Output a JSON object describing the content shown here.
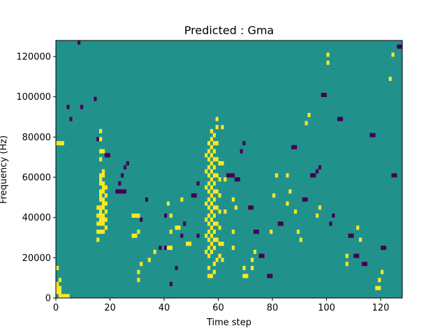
{
  "chart_data": {
    "type": "heatmap",
    "title": "Predicted : Gma",
    "xlabel": "Time step",
    "ylabel": "Frequency (Hz)",
    "xlim": [
      0,
      128
    ],
    "ylim": [
      0,
      128000
    ],
    "x_ticks": [
      0,
      20,
      40,
      60,
      80,
      100,
      120
    ],
    "y_ticks": [
      0,
      20000,
      40000,
      60000,
      80000,
      100000,
      120000
    ],
    "x_tick_labels": [
      "0",
      "20",
      "40",
      "60",
      "80",
      "100",
      "120"
    ],
    "y_tick_labels": [
      "0",
      "20000",
      "40000",
      "60000",
      "80000",
      "100000",
      "120000"
    ],
    "n_time_steps": 128,
    "n_freq_bins": 64,
    "bin_hz": 2000,
    "values_legend": {
      "background": 0,
      "high": 1,
      "low": -1
    },
    "colors": {
      "background": "#21918c",
      "high": "#fde725",
      "low": "#440154"
    },
    "high_cells": [
      [
        1,
        0
      ],
      [
        2,
        0
      ],
      [
        3,
        0
      ],
      [
        4,
        0
      ],
      [
        0,
        1
      ],
      [
        1,
        1
      ],
      [
        0,
        2
      ],
      [
        1,
        2
      ],
      [
        0,
        3
      ],
      [
        1,
        4
      ],
      [
        0,
        7
      ],
      [
        0,
        38
      ],
      [
        1,
        38
      ],
      [
        2,
        38
      ],
      [
        16,
        16
      ],
      [
        16,
        18
      ],
      [
        16,
        20
      ],
      [
        16,
        22
      ],
      [
        16,
        24
      ],
      [
        16,
        26
      ],
      [
        16,
        28
      ],
      [
        16,
        30
      ],
      [
        17,
        16
      ],
      [
        17,
        18
      ],
      [
        17,
        20
      ],
      [
        17,
        22
      ],
      [
        17,
        24
      ],
      [
        17,
        26
      ],
      [
        17,
        28
      ],
      [
        17,
        30
      ],
      [
        16,
        19
      ],
      [
        17,
        19
      ],
      [
        16,
        21
      ],
      [
        17,
        23
      ],
      [
        16,
        25
      ],
      [
        17,
        27
      ],
      [
        16,
        29
      ],
      [
        17,
        31
      ],
      [
        15,
        14
      ],
      [
        15,
        16
      ],
      [
        15,
        18
      ],
      [
        15,
        20
      ],
      [
        15,
        22
      ],
      [
        18,
        17
      ],
      [
        18,
        19
      ],
      [
        18,
        21
      ],
      [
        18,
        23
      ],
      [
        18,
        25
      ],
      [
        18,
        27
      ],
      [
        16,
        34
      ],
      [
        16,
        36
      ],
      [
        17,
        36
      ],
      [
        16,
        39
      ],
      [
        16,
        41
      ],
      [
        28,
        15
      ],
      [
        29,
        15
      ],
      [
        30,
        16
      ],
      [
        28,
        20
      ],
      [
        29,
        20
      ],
      [
        30,
        20
      ],
      [
        30,
        4
      ],
      [
        30,
        6
      ],
      [
        31,
        8
      ],
      [
        34,
        9
      ],
      [
        36,
        11
      ],
      [
        41,
        12
      ],
      [
        42,
        12
      ],
      [
        42,
        16
      ],
      [
        42,
        20
      ],
      [
        41,
        23
      ],
      [
        44,
        17
      ],
      [
        45,
        17
      ],
      [
        46,
        24
      ],
      [
        48,
        13
      ],
      [
        49,
        13
      ],
      [
        56,
        10
      ],
      [
        56,
        12
      ],
      [
        56,
        14
      ],
      [
        56,
        16
      ],
      [
        56,
        18
      ],
      [
        56,
        20
      ],
      [
        56,
        22
      ],
      [
        56,
        24
      ],
      [
        56,
        26
      ],
      [
        56,
        28
      ],
      [
        56,
        30
      ],
      [
        56,
        32
      ],
      [
        56,
        34
      ],
      [
        56,
        36
      ],
      [
        56,
        38
      ],
      [
        57,
        11
      ],
      [
        57,
        13
      ],
      [
        57,
        15
      ],
      [
        57,
        17
      ],
      [
        57,
        19
      ],
      [
        57,
        21
      ],
      [
        57,
        23
      ],
      [
        57,
        25
      ],
      [
        57,
        27
      ],
      [
        57,
        29
      ],
      [
        57,
        31
      ],
      [
        57,
        33
      ],
      [
        57,
        35
      ],
      [
        57,
        37
      ],
      [
        57,
        39
      ],
      [
        57,
        41
      ],
      [
        58,
        12
      ],
      [
        58,
        14
      ],
      [
        58,
        16
      ],
      [
        58,
        18
      ],
      [
        58,
        20
      ],
      [
        58,
        22
      ],
      [
        58,
        24
      ],
      [
        58,
        26
      ],
      [
        58,
        28
      ],
      [
        58,
        30
      ],
      [
        58,
        32
      ],
      [
        58,
        34
      ],
      [
        58,
        36
      ],
      [
        58,
        38
      ],
      [
        58,
        40
      ],
      [
        59,
        14
      ],
      [
        59,
        18
      ],
      [
        59,
        22
      ],
      [
        59,
        26
      ],
      [
        59,
        30
      ],
      [
        59,
        34
      ],
      [
        59,
        38
      ],
      [
        59,
        42
      ],
      [
        59,
        44
      ],
      [
        55,
        11
      ],
      [
        55,
        15
      ],
      [
        55,
        19
      ],
      [
        55,
        23
      ],
      [
        55,
        27
      ],
      [
        55,
        31
      ],
      [
        55,
        35
      ],
      [
        60,
        13
      ],
      [
        60,
        17
      ],
      [
        60,
        21
      ],
      [
        60,
        25
      ],
      [
        60,
        29
      ],
      [
        60,
        33
      ],
      [
        56,
        5
      ],
      [
        57,
        5
      ],
      [
        56,
        7
      ],
      [
        58,
        6
      ],
      [
        58,
        8
      ],
      [
        59,
        9
      ],
      [
        60,
        10
      ],
      [
        61,
        9
      ],
      [
        61,
        13
      ],
      [
        62,
        21
      ],
      [
        62,
        29
      ],
      [
        61,
        33
      ],
      [
        61,
        42
      ],
      [
        65,
        12
      ],
      [
        65,
        16
      ],
      [
        65,
        24
      ],
      [
        66,
        22
      ],
      [
        69,
        5
      ],
      [
        70,
        5
      ],
      [
        69,
        7
      ],
      [
        72,
        7
      ],
      [
        72,
        9
      ],
      [
        73,
        11
      ],
      [
        79,
        16
      ],
      [
        80,
        25
      ],
      [
        81,
        30
      ],
      [
        85,
        23
      ],
      [
        86,
        26
      ],
      [
        85,
        30
      ],
      [
        88,
        21
      ],
      [
        89,
        16
      ],
      [
        90,
        14
      ],
      [
        92,
        43
      ],
      [
        93,
        45
      ],
      [
        96,
        20
      ],
      [
        97,
        22
      ],
      [
        100,
        60
      ],
      [
        100,
        58
      ],
      [
        107,
        8
      ],
      [
        107,
        10
      ],
      [
        111,
        17
      ],
      [
        112,
        14
      ],
      [
        118,
        2
      ],
      [
        119,
        2
      ],
      [
        119,
        4
      ],
      [
        120,
        6
      ],
      [
        124,
        60
      ],
      [
        123,
        54
      ]
    ],
    "low_cells": [
      [
        8,
        63
      ],
      [
        4,
        47
      ],
      [
        5,
        44
      ],
      [
        9,
        47
      ],
      [
        14,
        49
      ],
      [
        15,
        39
      ],
      [
        22,
        26
      ],
      [
        23,
        26
      ],
      [
        24,
        26
      ],
      [
        25,
        26
      ],
      [
        18,
        35
      ],
      [
        19,
        35
      ],
      [
        23,
        28
      ],
      [
        24,
        30
      ],
      [
        25,
        32
      ],
      [
        26,
        33
      ],
      [
        31,
        19
      ],
      [
        33,
        24
      ],
      [
        38,
        12
      ],
      [
        40,
        12
      ],
      [
        40,
        20
      ],
      [
        42,
        3
      ],
      [
        44,
        7
      ],
      [
        46,
        15
      ],
      [
        47,
        18
      ],
      [
        50,
        25
      ],
      [
        51,
        25
      ],
      [
        52,
        15
      ],
      [
        52,
        28
      ],
      [
        63,
        30
      ],
      [
        64,
        30
      ],
      [
        65,
        30
      ],
      [
        66,
        29
      ],
      [
        67,
        29
      ],
      [
        68,
        36
      ],
      [
        69,
        38
      ],
      [
        71,
        22
      ],
      [
        72,
        22
      ],
      [
        73,
        16
      ],
      [
        74,
        16
      ],
      [
        75,
        10
      ],
      [
        76,
        10
      ],
      [
        78,
        5
      ],
      [
        79,
        5
      ],
      [
        82,
        18
      ],
      [
        83,
        18
      ],
      [
        87,
        37
      ],
      [
        88,
        37
      ],
      [
        91,
        24
      ],
      [
        92,
        24
      ],
      [
        94,
        30
      ],
      [
        95,
        30
      ],
      [
        96,
        31
      ],
      [
        97,
        32
      ],
      [
        98,
        50
      ],
      [
        99,
        50
      ],
      [
        101,
        18
      ],
      [
        102,
        20
      ],
      [
        104,
        44
      ],
      [
        105,
        44
      ],
      [
        108,
        15
      ],
      [
        109,
        15
      ],
      [
        110,
        10
      ],
      [
        111,
        10
      ],
      [
        113,
        8
      ],
      [
        114,
        8
      ],
      [
        116,
        40
      ],
      [
        117,
        40
      ],
      [
        120,
        12
      ],
      [
        121,
        12
      ],
      [
        124,
        30
      ],
      [
        125,
        30
      ],
      [
        126,
        62
      ],
      [
        127,
        62
      ]
    ]
  }
}
